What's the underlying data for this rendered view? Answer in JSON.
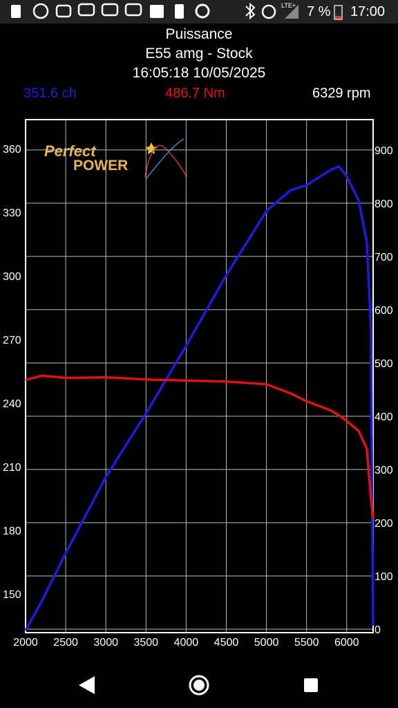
{
  "status_bar": {
    "network": "LTE+",
    "battery": "7 %",
    "time": "17:00"
  },
  "header": {
    "title": "Puissance",
    "subtitle": "E55 amg - Stock",
    "timestamp": "16:05:18 10/05/2025",
    "power_reading": "351.6 ch",
    "torque_reading": "486.7 Nm",
    "rpm_reading": "6329 rpm"
  },
  "logo": {
    "line1": "Perfect",
    "line2": "POWER"
  },
  "chart_data": {
    "type": "line",
    "x": [
      2000,
      2200,
      2500,
      3000,
      3500,
      4000,
      4500,
      5000,
      5300,
      5500,
      5800,
      5900,
      6000,
      6150,
      6250,
      6300,
      6329
    ],
    "series": [
      {
        "color": "#1c1ce0",
        "values": [
          132.7,
          146.4,
          169.2,
          205.1,
          235.1,
          267,
          300.3,
          330.6,
          340.4,
          342.7,
          350,
          351.6,
          347,
          335.5,
          316,
          277,
          135
        ]
      },
      {
        "color": "#e31212",
        "axis": "y2",
        "values": [
          468,
          476,
          472,
          473,
          469,
          467,
          465,
          460,
          443,
          428,
          411,
          402,
          391,
          372,
          339,
          248,
          209
        ]
      }
    ],
    "xlim": [
      2000,
      6329
    ],
    "xticks": [
      2000,
      2500,
      3000,
      3500,
      4000,
      4500,
      5000,
      5500,
      6000
    ],
    "ylim": [
      131.7,
      373.7
    ],
    "yticks": [
      150,
      180,
      210,
      240,
      270,
      300,
      330,
      360
    ],
    "y2lim": [
      -6.5,
      957
    ],
    "y2ticks": [
      0,
      100,
      200,
      300,
      400,
      500,
      600,
      700,
      800,
      900
    ],
    "grid": true
  }
}
